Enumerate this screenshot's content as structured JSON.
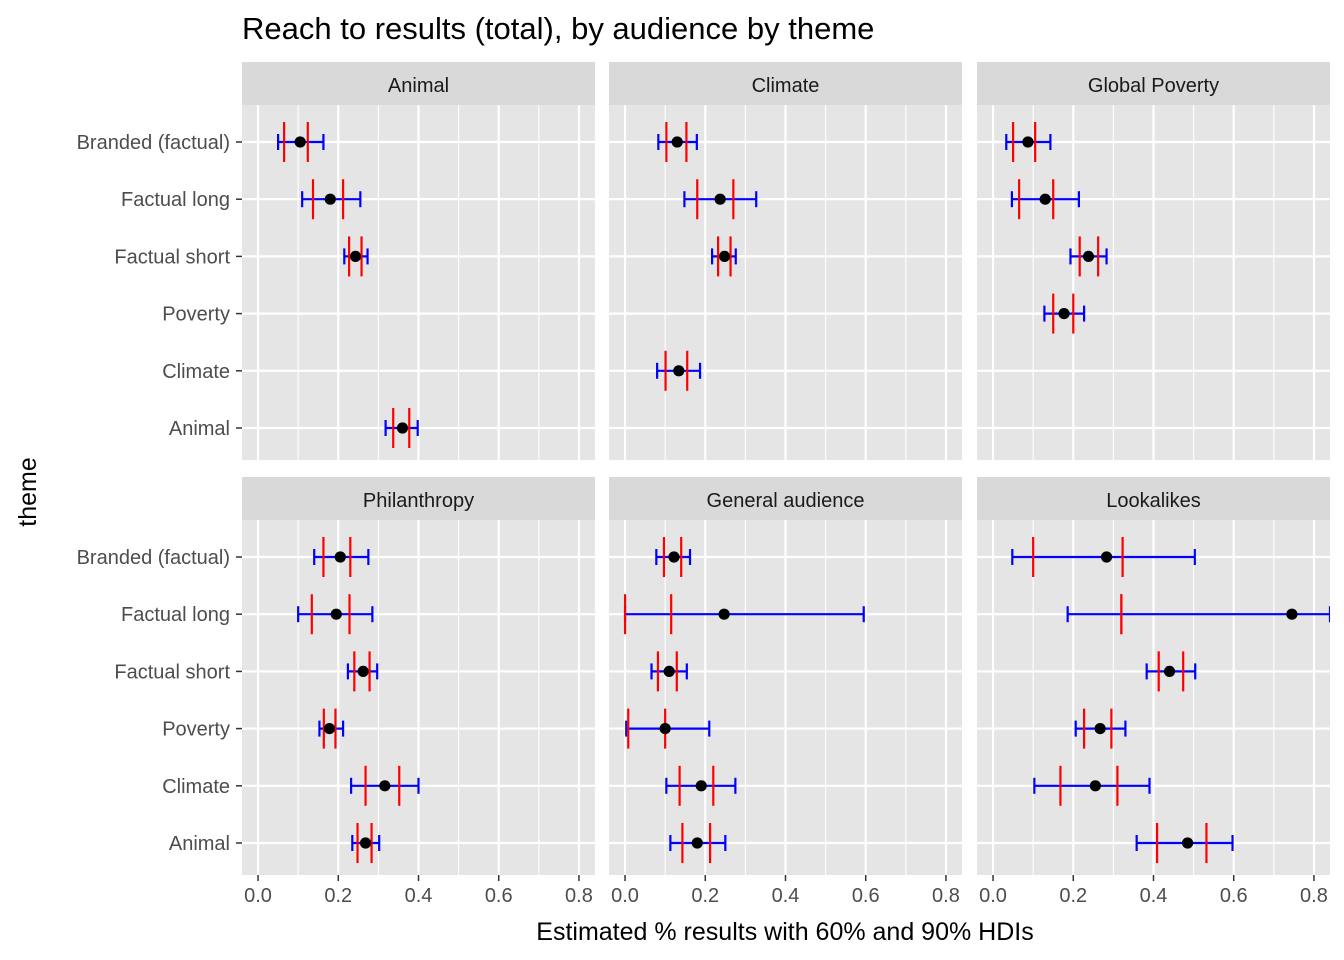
{
  "chart_data": {
    "type": "errorbar",
    "title": "Reach to results (total), by audience by theme",
    "xlabel": "Estimated % results with 60% and 90% HDIs",
    "ylabel": "theme",
    "xlim": [
      -0.04,
      0.84
    ],
    "x_ticks": [
      0.0,
      0.2,
      0.4,
      0.6,
      0.8
    ],
    "x_tick_labels": [
      "0.0",
      "0.2",
      "0.4",
      "0.6",
      "0.8"
    ],
    "categories": [
      "Branded (factual)",
      "Factual long",
      "Factual short",
      "Poverty",
      "Climate",
      "Animal"
    ],
    "grid": true,
    "colors": {
      "point": "#000000",
      "hdi_60": "#ff0000",
      "hdi_90": "#0000ff",
      "panel_bg": "#e5e5e5",
      "strip_bg": "#d9d9d9",
      "grid": "#ffffff"
    },
    "facets": [
      {
        "label": "Animal",
        "rows": [
          {
            "category": "Branded (factual)",
            "estimate": 0.105,
            "hdi60": [
              0.065,
              0.124
            ],
            "hdi90": [
              0.05,
              0.163
            ]
          },
          {
            "category": "Factual long",
            "estimate": 0.18,
            "hdi60": [
              0.137,
              0.212
            ],
            "hdi90": [
              0.11,
              0.255
            ]
          },
          {
            "category": "Factual short",
            "estimate": 0.243,
            "hdi60": [
              0.227,
              0.258
            ],
            "hdi90": [
              0.215,
              0.273
            ]
          },
          {
            "category": "Animal",
            "estimate": 0.36,
            "hdi60": [
              0.337,
              0.377
            ],
            "hdi90": [
              0.318,
              0.398
            ]
          }
        ]
      },
      {
        "label": "Climate",
        "rows": [
          {
            "category": "Branded (factual)",
            "estimate": 0.13,
            "hdi60": [
              0.103,
              0.153
            ],
            "hdi90": [
              0.083,
              0.179
            ]
          },
          {
            "category": "Factual long",
            "estimate": 0.237,
            "hdi60": [
              0.18,
              0.27
            ],
            "hdi90": [
              0.148,
              0.327
            ]
          },
          {
            "category": "Factual short",
            "estimate": 0.248,
            "hdi60": [
              0.232,
              0.263
            ],
            "hdi90": [
              0.217,
              0.276
            ]
          },
          {
            "category": "Climate",
            "estimate": 0.134,
            "hdi60": [
              0.101,
              0.155
            ],
            "hdi90": [
              0.08,
              0.187
            ]
          }
        ]
      },
      {
        "label": "Global Poverty",
        "rows": [
          {
            "category": "Branded (factual)",
            "estimate": 0.087,
            "hdi60": [
              0.05,
              0.105
            ],
            "hdi90": [
              0.033,
              0.143
            ]
          },
          {
            "category": "Factual long",
            "estimate": 0.13,
            "hdi60": [
              0.065,
              0.15
            ],
            "hdi90": [
              0.047,
              0.214
            ]
          },
          {
            "category": "Factual short",
            "estimate": 0.238,
            "hdi60": [
              0.216,
              0.262
            ],
            "hdi90": [
              0.193,
              0.283
            ]
          },
          {
            "category": "Poverty",
            "estimate": 0.177,
            "hdi60": [
              0.15,
              0.2
            ],
            "hdi90": [
              0.128,
              0.227
            ]
          }
        ]
      },
      {
        "label": "Philanthropy",
        "rows": [
          {
            "category": "Branded (factual)",
            "estimate": 0.205,
            "hdi60": [
              0.163,
              0.23
            ],
            "hdi90": [
              0.14,
              0.275
            ]
          },
          {
            "category": "Factual long",
            "estimate": 0.195,
            "hdi60": [
              0.134,
              0.228
            ],
            "hdi90": [
              0.1,
              0.285
            ]
          },
          {
            "category": "Factual short",
            "estimate": 0.262,
            "hdi60": [
              0.24,
              0.278
            ],
            "hdi90": [
              0.224,
              0.297
            ]
          },
          {
            "category": "Poverty",
            "estimate": 0.178,
            "hdi60": [
              0.164,
              0.193
            ],
            "hdi90": [
              0.153,
              0.212
            ]
          },
          {
            "category": "Climate",
            "estimate": 0.316,
            "hdi60": [
              0.268,
              0.352
            ],
            "hdi90": [
              0.232,
              0.4
            ]
          },
          {
            "category": "Animal",
            "estimate": 0.268,
            "hdi60": [
              0.248,
              0.283
            ],
            "hdi90": [
              0.235,
              0.302
            ]
          }
        ]
      },
      {
        "label": "General audience",
        "rows": [
          {
            "category": "Branded (factual)",
            "estimate": 0.122,
            "hdi60": [
              0.097,
              0.14
            ],
            "hdi90": [
              0.078,
              0.162
            ]
          },
          {
            "category": "Factual long",
            "estimate": 0.247,
            "hdi60": [
              0.0,
              0.115
            ],
            "hdi90": [
              0.0,
              0.595
            ]
          },
          {
            "category": "Factual short",
            "estimate": 0.11,
            "hdi60": [
              0.082,
              0.129
            ],
            "hdi90": [
              0.066,
              0.154
            ]
          },
          {
            "category": "Poverty",
            "estimate": 0.1,
            "hdi60": [
              0.008,
              0.1
            ],
            "hdi90": [
              0.003,
              0.21
            ]
          },
          {
            "category": "Climate",
            "estimate": 0.19,
            "hdi60": [
              0.136,
              0.22
            ],
            "hdi90": [
              0.103,
              0.275
            ]
          },
          {
            "category": "Animal",
            "estimate": 0.18,
            "hdi60": [
              0.143,
              0.212
            ],
            "hdi90": [
              0.113,
              0.25
            ]
          }
        ]
      },
      {
        "label": "Lookalikes",
        "rows": [
          {
            "category": "Branded (factual)",
            "estimate": 0.283,
            "hdi60": [
              0.1,
              0.323
            ],
            "hdi90": [
              0.048,
              0.503
            ]
          },
          {
            "category": "Factual long",
            "estimate": 0.745,
            "hdi60": [
              0.32,
              0.32
            ],
            "hdi90": [
              0.186,
              0.84
            ]
          },
          {
            "category": "Factual short",
            "estimate": 0.44,
            "hdi60": [
              0.413,
              0.474
            ],
            "hdi90": [
              0.383,
              0.504
            ]
          },
          {
            "category": "Poverty",
            "estimate": 0.267,
            "hdi60": [
              0.227,
              0.295
            ],
            "hdi90": [
              0.206,
              0.33
            ]
          },
          {
            "category": "Climate",
            "estimate": 0.255,
            "hdi60": [
              0.168,
              0.31
            ],
            "hdi90": [
              0.103,
              0.39
            ]
          },
          {
            "category": "Animal",
            "estimate": 0.485,
            "hdi60": [
              0.409,
              0.532
            ],
            "hdi90": [
              0.358,
              0.597
            ]
          }
        ]
      }
    ]
  }
}
